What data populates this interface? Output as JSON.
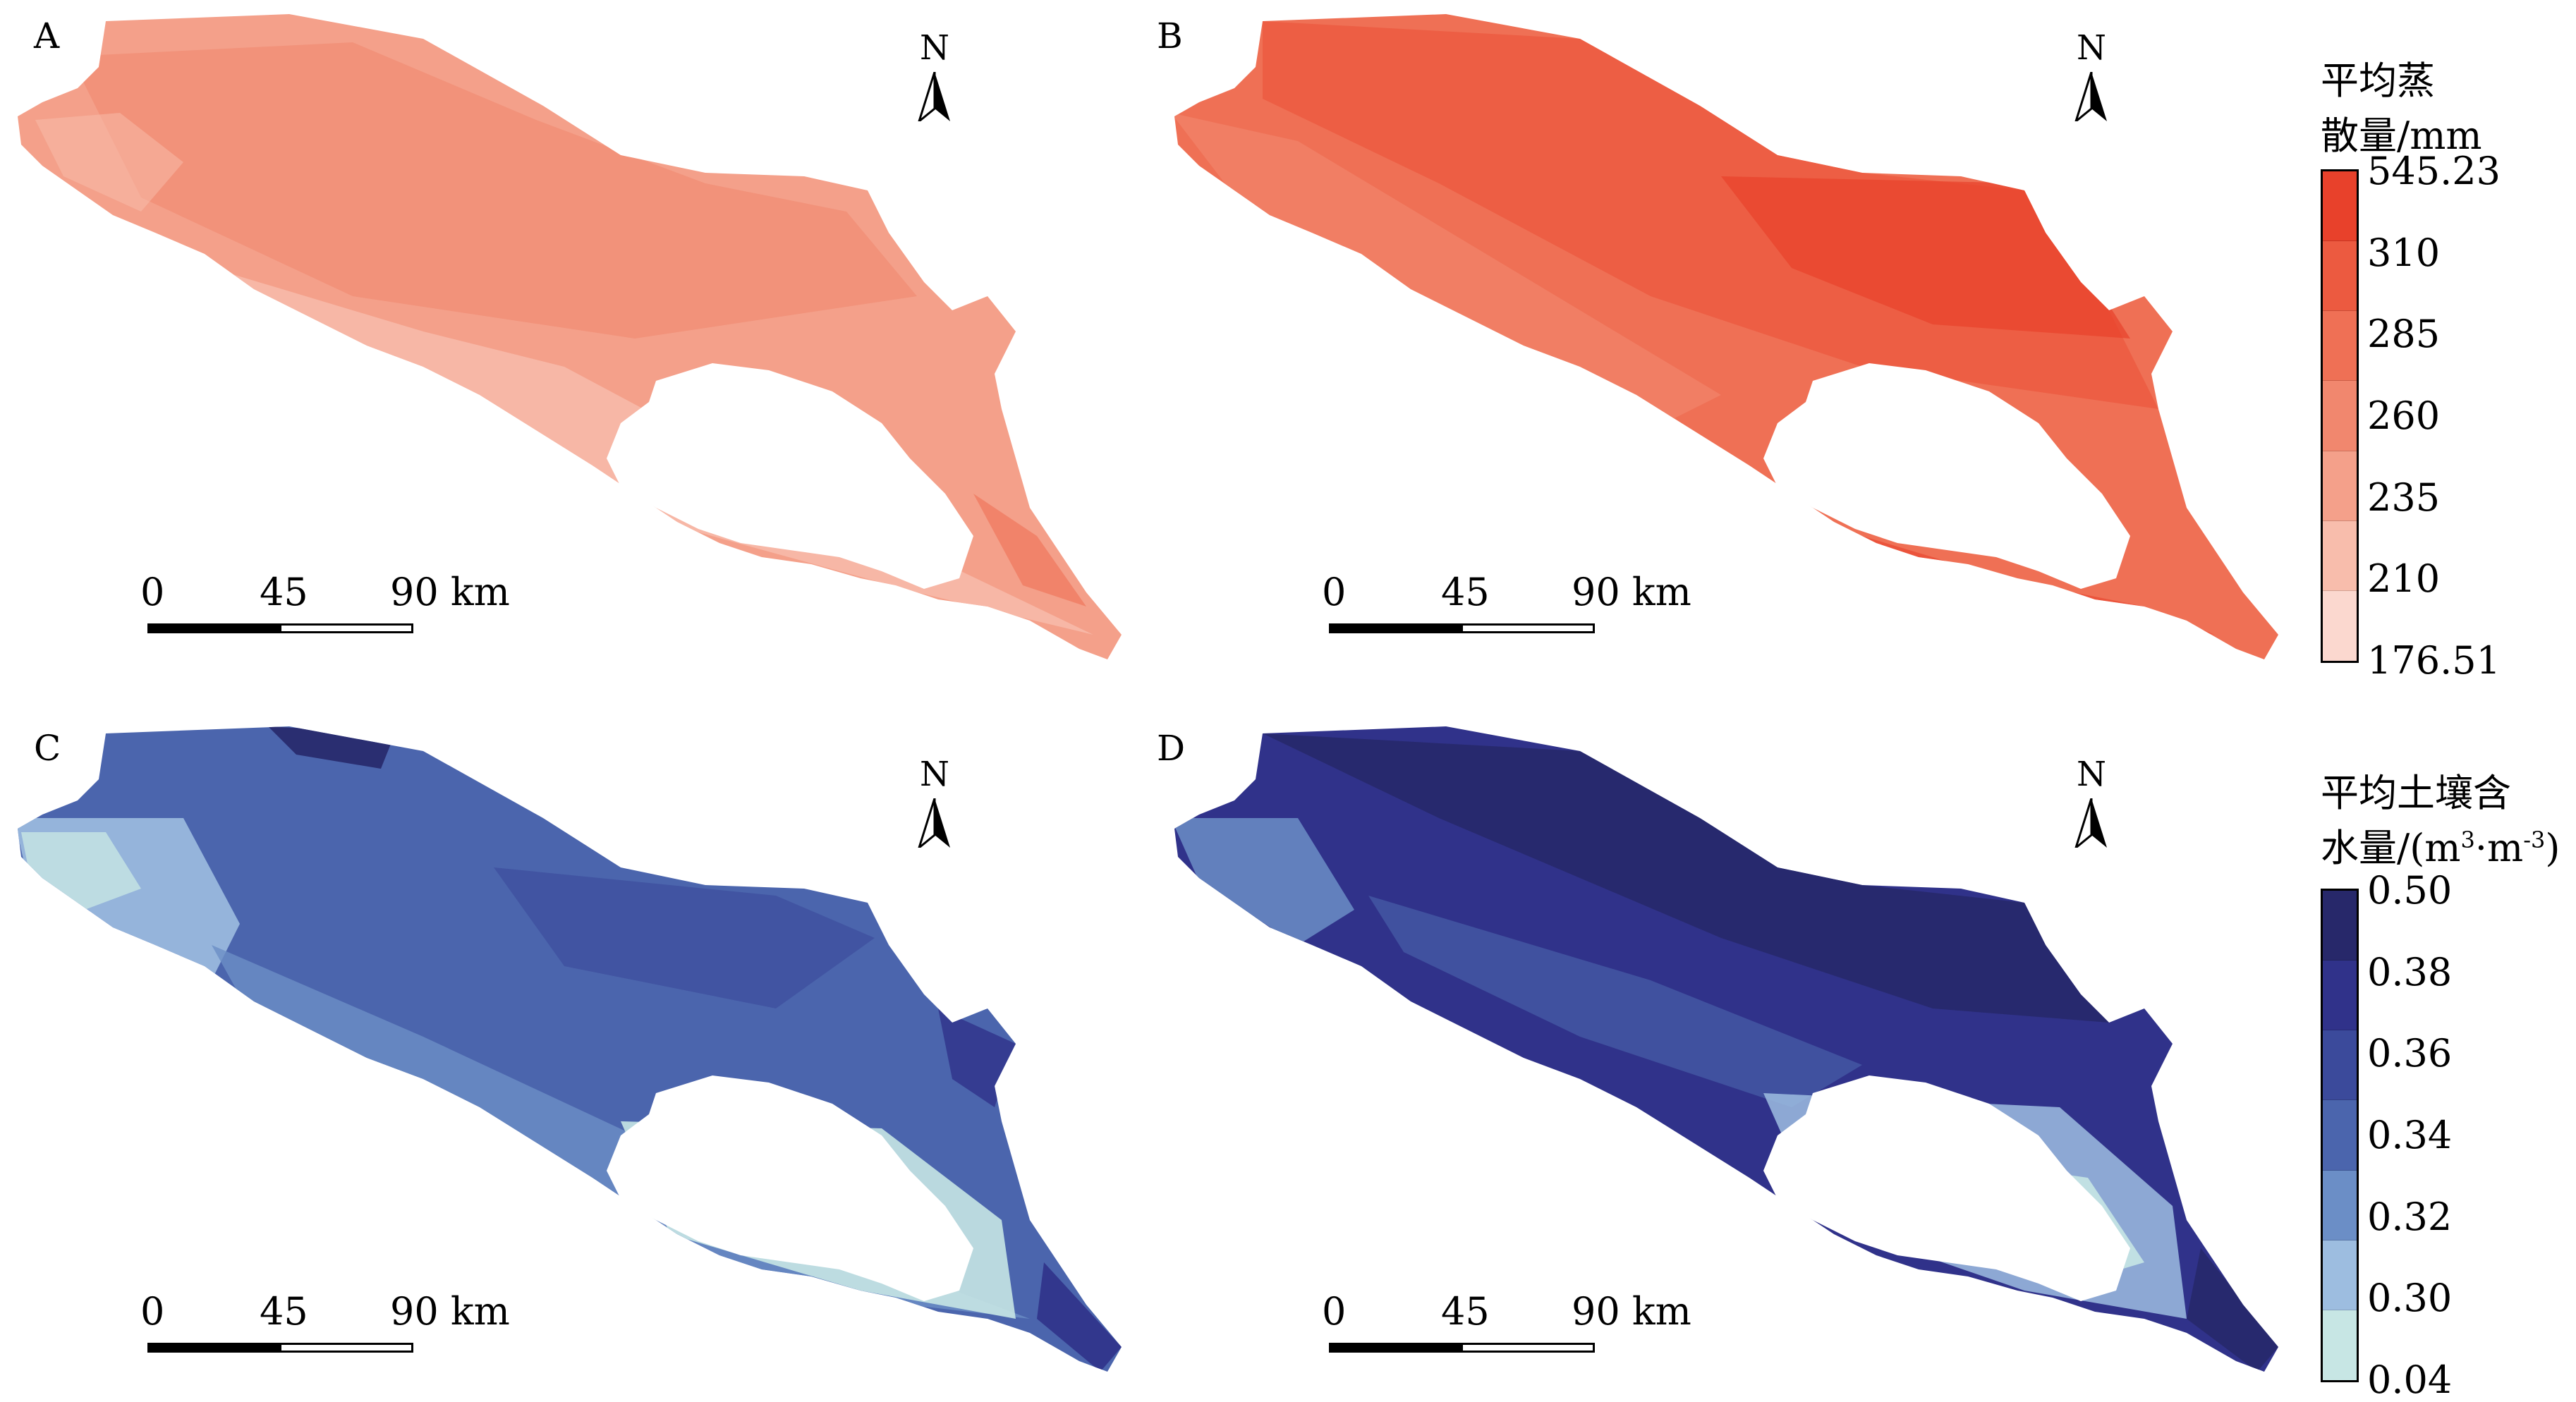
{
  "panels": [
    {
      "letter": "A",
      "north": "N",
      "scale": {
        "ticks": [
          "0",
          "45",
          "90 km"
        ]
      },
      "theme": "et",
      "variant": "light"
    },
    {
      "letter": "B",
      "north": "N",
      "scale": {
        "ticks": [
          "0",
          "45",
          "90 km"
        ]
      },
      "theme": "et",
      "variant": "dark"
    },
    {
      "letter": "C",
      "north": "N",
      "scale": {
        "ticks": [
          "0",
          "45",
          "90 km"
        ]
      },
      "theme": "sm",
      "variant": "light"
    },
    {
      "letter": "D",
      "north": "N",
      "scale": {
        "ticks": [
          "0",
          "45",
          "90 km"
        ]
      },
      "theme": "sm",
      "variant": "dark"
    }
  ],
  "legend_et": {
    "title_line1": "平均蒸",
    "title_line2": "散量/mm",
    "labels": [
      "545.23",
      "310",
      "285",
      "260",
      "235",
      "210",
      "176.51"
    ],
    "colors": [
      "#e8412b",
      "#ec5a40",
      "#ef7055",
      "#f1876e",
      "#f4a08a",
      "#f8bdac",
      "#fbd8cf"
    ]
  },
  "legend_sm": {
    "title_line1": "平均土壤含",
    "title_line2_prefix": "水量/(m",
    "title_line2_sup1": "3",
    "title_line2_mid": "·m",
    "title_line2_sup2": "-3",
    "title_line2_suffix": ")",
    "labels": [
      "0.50",
      "0.38",
      "0.36",
      "0.34",
      "0.32",
      "0.30",
      "0.04"
    ],
    "colors": [
      "#27286a",
      "#30328a",
      "#3b4a9b",
      "#4b65ad",
      "#6b8ec6",
      "#9dbde0",
      "#c7e6e4"
    ]
  }
}
